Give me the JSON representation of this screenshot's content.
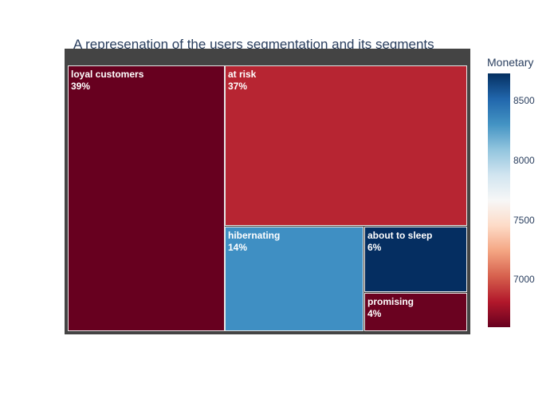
{
  "chart_data": {
    "type": "treemap",
    "title": "A represenation of the users segmentation and its segments",
    "segments": [
      {
        "label": "loyal customers",
        "percent_label": "39%",
        "share": 0.39,
        "color": "#67001f"
      },
      {
        "label": "at risk",
        "percent_label": "37%",
        "share": 0.37,
        "color": "#b72532"
      },
      {
        "label": "hibernating",
        "percent_label": "14%",
        "share": 0.14,
        "color": "#3f8fc3"
      },
      {
        "label": "about to sleep",
        "percent_label": "6%",
        "share": 0.06,
        "color": "#052e61"
      },
      {
        "label": "promising",
        "percent_label": "4%",
        "share": 0.04,
        "color": "#6a0220"
      }
    ],
    "colorbar": {
      "title": "Monetary",
      "range": [
        6600,
        8730
      ],
      "ticks": [
        {
          "value": 7000,
          "label": "7000"
        },
        {
          "value": 7500,
          "label": "7500"
        },
        {
          "value": 8000,
          "label": "8000"
        },
        {
          "value": 8500,
          "label": "8500"
        }
      ],
      "colorscale": [
        "#67001f",
        "#b2182b",
        "#d6604d",
        "#f4a582",
        "#fddbc7",
        "#f7f7f7",
        "#d1e5f0",
        "#92c5de",
        "#4393c3",
        "#2166ac",
        "#053061"
      ]
    }
  }
}
